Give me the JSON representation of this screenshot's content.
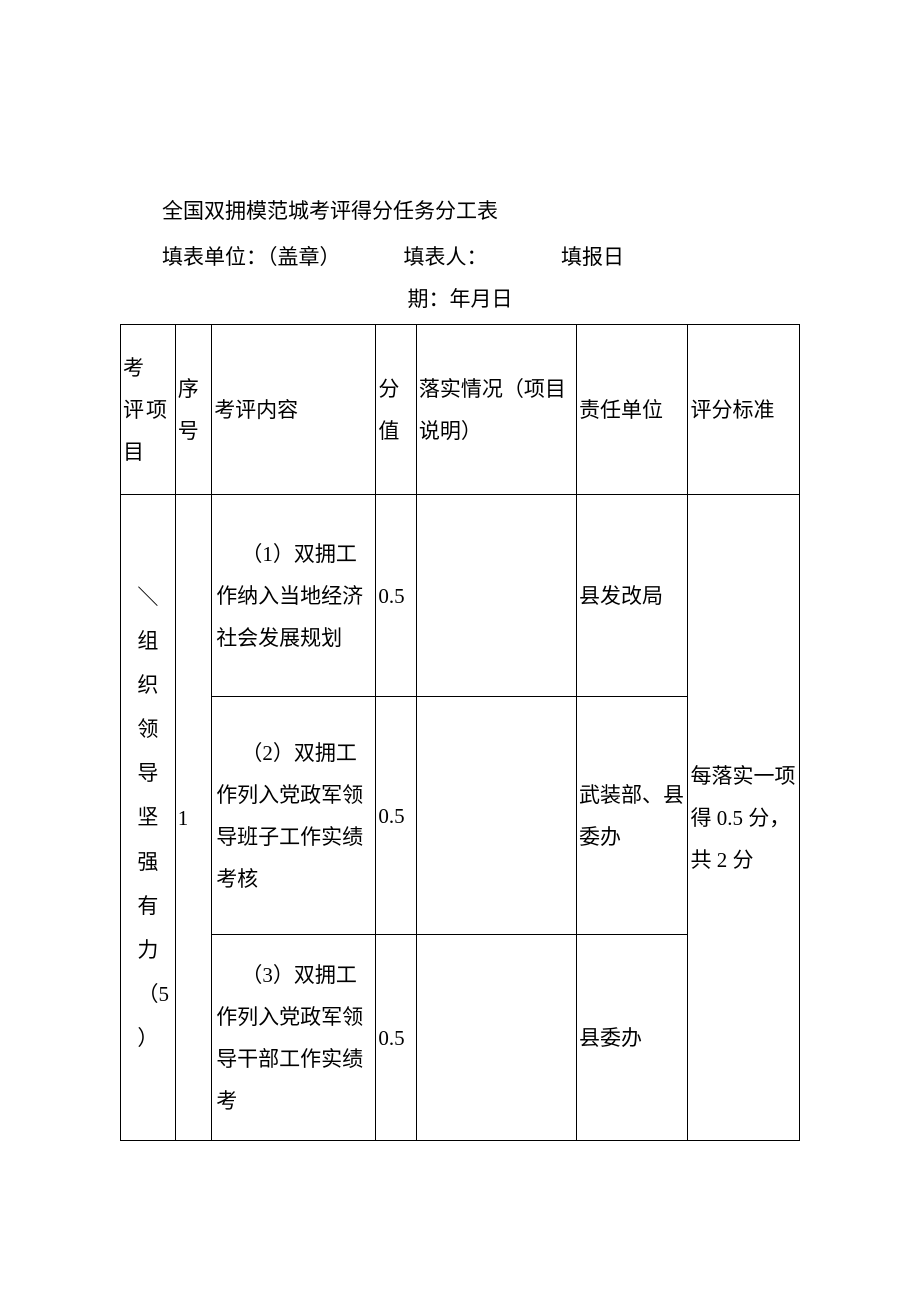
{
  "title": "全国双拥模范城考评得分任务分工表",
  "meta": {
    "unit_label": "填表单位：（盖章）",
    "person_label": "填表人：",
    "date_label": "填报日",
    "date_suffix": "期：年月日"
  },
  "headers": {
    "c1": "考  评项目",
    "c2": "序号",
    "c3": "考评内容",
    "c4": "分值",
    "c5": "落实情况（项目说明）",
    "c6": "责任单位",
    "c7": "评分标准"
  },
  "group": {
    "project": "＼\n组织领导坚强有力\n（5）",
    "seq": "1",
    "standard": "每落实一项得 0.5 分，共 2 分"
  },
  "rows": [
    {
      "content": "（1）双拥工作纳入当地经济社会发展规划",
      "score": "0.5",
      "impl": "",
      "unit": "县发改局"
    },
    {
      "content": "（2）双拥工作列入党政军领导班子工作实绩考核",
      "score": "0.5",
      "impl": "",
      "unit": "武装部、县委办"
    },
    {
      "content": "（3）双拥工作列入党政军领导干部工作实绩考",
      "score": "0.5",
      "impl": "",
      "unit": "县委办"
    }
  ]
}
